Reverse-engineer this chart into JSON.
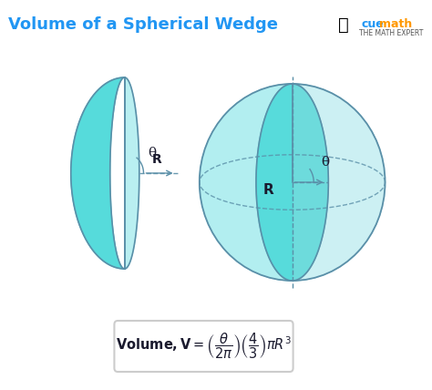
{
  "title": "Volume of a Spherical Wedge",
  "title_color": "#2196F3",
  "bg_color": "#ffffff",
  "wedge_fill_color": "#4DD9D9",
  "wedge_light_color": "#B2EEF0",
  "sphere_outline_color": "#5A8FA8",
  "dashed_color": "#5A8FA8",
  "formula_box_color": "#ffffff",
  "formula_text": "Volume, V = $\\left(\\dfrac{\\theta}{2\\pi}\\right)\\left(\\dfrac{4}{3}\\right)\\pi R^3$",
  "label_R": "R",
  "label_theta": "θ",
  "cuemath_text": "cuemath",
  "cuemath_subtext": "THE MATH EXPERT"
}
